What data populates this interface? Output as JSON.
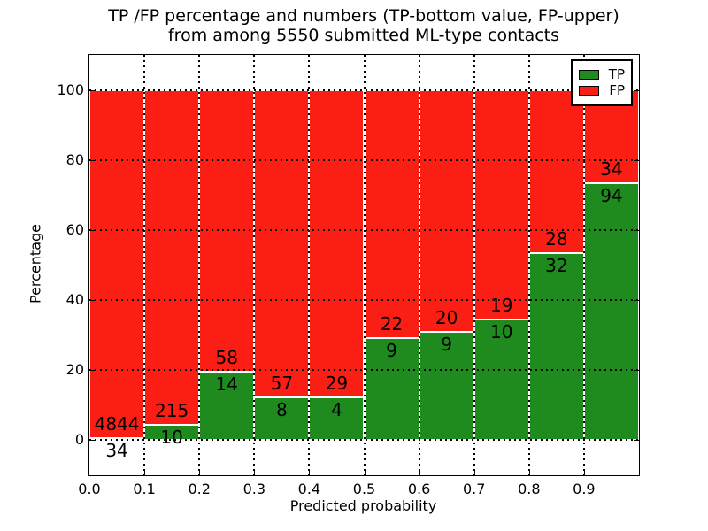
{
  "title": {
    "line1": "TP /FP percentage and numbers (TP-bottom value, FP-upper)",
    "line2": "from among 5550 submitted ML-type contacts"
  },
  "axes": {
    "xlabel": "Predicted probability",
    "ylabel": "Percentage",
    "xtick_labels": [
      "0.0",
      "0.1",
      "0.2",
      "0.3",
      "0.4",
      "0.5",
      "0.6",
      "0.7",
      "0.8",
      "0.9"
    ],
    "ytick_labels": [
      "0",
      "20",
      "40",
      "60",
      "80",
      "100"
    ]
  },
  "legend": {
    "entries": [
      {
        "label": "TP",
        "color": "#1f8b1f"
      },
      {
        "label": "FP",
        "color": "#fb1e14"
      }
    ]
  },
  "colors": {
    "tp_green": "#1f8b1f",
    "fp_red": "#fb1e14",
    "bar_edge": "#ffffff",
    "grid": "#000000"
  },
  "chart_data": {
    "type": "bar",
    "stacked": true,
    "title": "TP /FP percentage and numbers (TP-bottom value, FP-upper) from among 5550 submitted ML-type contacts",
    "xlabel": "Predicted probability",
    "ylabel": "Percentage",
    "bin_starts": [
      0.0,
      0.1,
      0.2,
      0.3,
      0.4,
      0.5,
      0.6,
      0.7,
      0.8,
      0.9
    ],
    "bin_width": 0.1,
    "series": [
      {
        "name": "TP",
        "counts": [
          34,
          10,
          14,
          8,
          4,
          9,
          9,
          10,
          32,
          94
        ]
      },
      {
        "name": "FP",
        "counts": [
          4844,
          215,
          58,
          57,
          29,
          22,
          20,
          19,
          28,
          34
        ]
      }
    ],
    "tp_percent": [
      0.7,
      4.4,
      19.4,
      12.3,
      12.1,
      29.0,
      31.0,
      34.5,
      53.3,
      73.4
    ],
    "bars_total_percent": 100,
    "xlim": [
      0.0,
      1.0
    ],
    "ylim": [
      -10,
      110
    ],
    "yticks": [
      0,
      20,
      40,
      60,
      80,
      100
    ],
    "grid": "dotted",
    "legend_position": "upper right"
  }
}
